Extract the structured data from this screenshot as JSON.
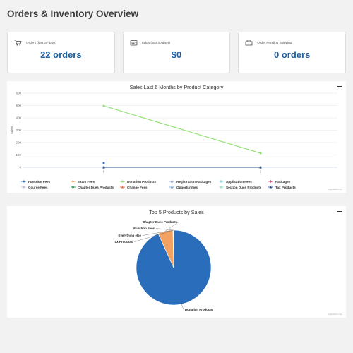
{
  "page": {
    "title": "Orders & Inventory Overview"
  },
  "kpis": [
    {
      "label": "Orders (last 30 days)",
      "value": "22 orders",
      "icon": "shopping-cart-icon"
    },
    {
      "label": "Sales (last 30 days)",
      "value": "$0",
      "icon": "cash-register-icon"
    },
    {
      "label": "Order Pending Shipping",
      "value": "0 orders",
      "icon": "shipping-box-icon"
    }
  ],
  "line_chart": {
    "credit": "Highcharts.com",
    "chart_data": {
      "type": "line",
      "title": "Sales Last 6 Months by Product Category",
      "xlabel": "",
      "ylabel": "Sales",
      "x": [
        0,
        1
      ],
      "xticks": [
        "0",
        "1"
      ],
      "ylim": [
        0,
        600
      ],
      "yticks": [
        "0",
        "100",
        "200",
        "300",
        "400",
        "500",
        "600"
      ],
      "grid": true,
      "legend_position": "bottom",
      "series": [
        {
          "name": "Function Fees",
          "color": "#2a6ebb",
          "marker": "circle",
          "values": [
            35,
            null
          ]
        },
        {
          "name": "Exam Fees",
          "color": "#f4a261",
          "marker": "diamond",
          "values": [
            0,
            0
          ]
        },
        {
          "name": "Donation Products",
          "color": "#90e070",
          "marker": "circle",
          "values": [
            497,
            114
          ]
        },
        {
          "name": "Registration Packages",
          "color": "#8da0cb",
          "marker": "triangle",
          "values": [
            0,
            0
          ]
        },
        {
          "name": "Application Fees",
          "color": "#9ad9e6",
          "marker": "square",
          "values": [
            0,
            0
          ]
        },
        {
          "name": "Packages",
          "color": "#e34a6f",
          "marker": "diamond",
          "values": [
            0,
            0
          ]
        },
        {
          "name": "Course Fees",
          "color": "#b9c2d0",
          "marker": "circle",
          "values": [
            0,
            0
          ]
        },
        {
          "name": "Chapter Dues Products",
          "color": "#2e8b57",
          "marker": "diamond",
          "values": [
            0,
            0
          ]
        },
        {
          "name": "Change Fees",
          "color": "#e76f51",
          "marker": "triangle",
          "values": [
            0,
            0
          ]
        },
        {
          "name": "Opportunities",
          "color": "#7a9fc2",
          "marker": "triangle",
          "values": [
            0,
            0
          ]
        },
        {
          "name": "Section Dues Products",
          "color": "#b3e0d6",
          "marker": "square",
          "values": [
            0,
            0
          ]
        },
        {
          "name": "Tax Products",
          "color": "#2f4f8f",
          "marker": "triangle",
          "values": [
            0,
            0
          ]
        }
      ]
    }
  },
  "pie_chart": {
    "credit": "Highcharts.com",
    "chart_data": {
      "type": "pie",
      "title": "Top 5 Products by Sales",
      "series": [
        {
          "name": "Donation Products",
          "value": 93.2,
          "color": "#2a6ebb"
        },
        {
          "name": "Chapter Dues Products",
          "value": 6.5,
          "color": "#f4a261"
        },
        {
          "name": "Function Fees",
          "value": 0.1,
          "color": "#90e070"
        },
        {
          "name": "Everything else",
          "value": 0.1,
          "color": "#8da0cb"
        },
        {
          "name": "Tax Products",
          "value": 0.1,
          "color": "#9ad9e6"
        }
      ]
    }
  }
}
